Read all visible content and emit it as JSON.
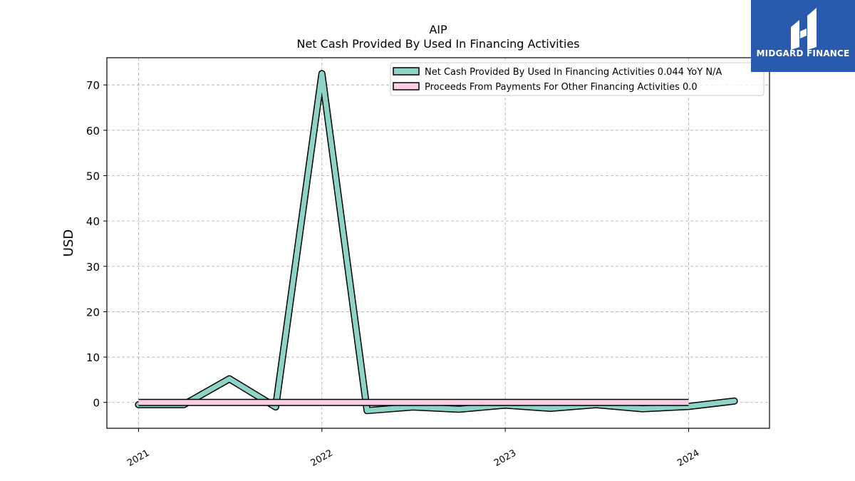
{
  "brand": {
    "name": "MIDGARD FINANCE",
    "bg_color": "#2a5aad",
    "mark_color": "#ffffff"
  },
  "chart_data": {
    "type": "line",
    "title": "AIP",
    "subtitle": "Net Cash Provided By Used In Financing Activities",
    "xlabel": "",
    "ylabel": "USD",
    "x_tick_labels": [
      "2021",
      "2022",
      "2023",
      "2024"
    ],
    "y_ticks": [
      0,
      10,
      20,
      30,
      40,
      50,
      60,
      70
    ],
    "xlim": [
      "2020-10-30",
      "2024-06-10"
    ],
    "ylim": [
      -5.7,
      76
    ],
    "grid": true,
    "legend_position": "top-right",
    "series": [
      {
        "name": "Net Cash Provided By Used In Financing Activities  0.044 YoY N/A",
        "color": "#8dd3c7",
        "points": [
          {
            "x": "2021-01-01",
            "y": -0.5
          },
          {
            "x": "2021-04-01",
            "y": -0.5
          },
          {
            "x": "2021-07-01",
            "y": 5.2
          },
          {
            "x": "2021-10-01",
            "y": -1.0
          },
          {
            "x": "2022-01-01",
            "y": 72.5
          },
          {
            "x": "2022-04-01",
            "y": -1.8
          },
          {
            "x": "2022-07-01",
            "y": -1.0
          },
          {
            "x": "2022-10-01",
            "y": -1.5
          },
          {
            "x": "2023-01-01",
            "y": -0.6
          },
          {
            "x": "2023-04-01",
            "y": -1.3
          },
          {
            "x": "2023-07-01",
            "y": -0.5
          },
          {
            "x": "2023-10-01",
            "y": -1.4
          },
          {
            "x": "2024-01-01",
            "y": -0.9
          },
          {
            "x": "2024-04-01",
            "y": 0.3
          }
        ]
      },
      {
        "name": "Proceeds From Payments For Other Financing Activities  0.0",
        "color": "#fccde5",
        "points": [
          {
            "x": "2021-01-01",
            "y": 0.0
          },
          {
            "x": "2024-01-01",
            "y": 0.0
          }
        ]
      }
    ]
  }
}
